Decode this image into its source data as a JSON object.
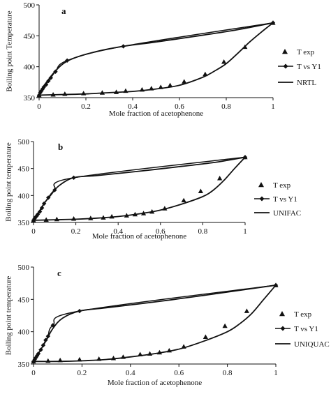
{
  "chart_data": [
    {
      "type": "line",
      "panel_label": "a",
      "xlabel": "Mole fraction of acetophenone",
      "ylabel": "Boiling  point Temperature",
      "xlim": [
        0,
        1
      ],
      "ylim": [
        350,
        500
      ],
      "xticks": [
        "0",
        "0.2",
        "0.4",
        "0.6",
        "0.8",
        "1"
      ],
      "yticks": [
        "350",
        "400",
        "450",
        "500"
      ],
      "legend": [
        "T exp",
        "T vs Y1",
        "NRTL"
      ],
      "legend_position": "right",
      "series": [
        {
          "name": "T exp",
          "marker": "triangle",
          "x": [
            0.0,
            0.06,
            0.11,
            0.19,
            0.27,
            0.33,
            0.37,
            0.44,
            0.48,
            0.52,
            0.56,
            0.62,
            0.71,
            0.79,
            0.88,
            1.0
          ],
          "y": [
            354,
            355,
            356,
            357,
            358,
            359,
            361,
            363,
            365,
            367,
            370,
            376,
            388,
            408,
            432,
            471
          ]
        },
        {
          "name": "T vs Y1",
          "marker": "diamond",
          "x": [
            0.0,
            0.005,
            0.01,
            0.015,
            0.02,
            0.03,
            0.04,
            0.05,
            0.07,
            0.12,
            0.36,
            1.0
          ],
          "y": [
            354,
            358,
            361,
            364,
            367,
            371,
            377,
            382,
            392,
            410,
            433,
            471
          ]
        },
        {
          "name": "NRTL",
          "marker": "none",
          "x": [
            0.0,
            0.1,
            0.2,
            0.3,
            0.4,
            0.5,
            0.6,
            0.7,
            0.75,
            0.8,
            0.85,
            0.9,
            0.95,
            1.0
          ],
          "y": [
            354,
            355,
            356,
            358,
            360,
            364,
            370,
            383,
            393,
            405,
            422,
            440,
            456,
            471
          ]
        },
        {
          "name": "NRTL",
          "marker": "none",
          "x": [
            0.0,
            0.01,
            0.02,
            0.04,
            0.06,
            0.1,
            0.15,
            0.25,
            0.36,
            0.5,
            0.7,
            0.85,
            1.0
          ],
          "y": [
            354,
            362,
            369,
            379,
            389,
            404,
            414,
            425,
            433,
            440,
            451,
            460,
            471
          ]
        }
      ]
    },
    {
      "type": "line",
      "panel_label": "b",
      "xlabel": "Mole fraction of  acetophenone",
      "ylabel": "Boiling point temperature",
      "xlim": [
        0,
        1
      ],
      "ylim": [
        350,
        500
      ],
      "xticks": [
        "0",
        "0.2",
        "0.4",
        "0.6",
        "0.8",
        "1"
      ],
      "yticks": [
        "350",
        "400",
        "450",
        "500"
      ],
      "legend": [
        "T exp",
        "T vs Y1",
        "UNIFAC"
      ],
      "legend_position": "right",
      "series": [
        {
          "name": "T exp",
          "marker": "triangle",
          "x": [
            0.0,
            0.06,
            0.11,
            0.19,
            0.27,
            0.33,
            0.37,
            0.44,
            0.48,
            0.52,
            0.56,
            0.62,
            0.71,
            0.79,
            0.88,
            1.0
          ],
          "y": [
            354,
            355,
            356,
            357,
            358,
            359,
            361,
            363,
            365,
            367,
            370,
            376,
            391,
            408,
            432,
            471
          ]
        },
        {
          "name": "T vs Y1",
          "marker": "diamond",
          "x": [
            0.0,
            0.005,
            0.01,
            0.015,
            0.02,
            0.03,
            0.04,
            0.05,
            0.07,
            0.1,
            0.19,
            1.0
          ],
          "y": [
            354,
            357,
            360,
            362,
            365,
            370,
            377,
            385,
            396,
            410,
            433,
            471
          ]
        },
        {
          "name": "UNIFAC",
          "marker": "none",
          "x": [
            0.0,
            0.1,
            0.2,
            0.3,
            0.4,
            0.5,
            0.6,
            0.7,
            0.8,
            0.85,
            0.9,
            0.95,
            1.0
          ],
          "y": [
            354,
            355,
            356,
            358,
            361,
            366,
            373,
            384,
            398,
            410,
            428,
            450,
            471
          ]
        },
        {
          "name": "UNIFAC",
          "marker": "none",
          "x": [
            0.0,
            0.02,
            0.05,
            0.08,
            0.12,
            0.19,
            0.3,
            0.5,
            0.7,
            0.85,
            1.0
          ],
          "y": [
            354,
            366,
            385,
            400,
            418,
            433,
            437,
            445,
            454,
            461,
            471
          ]
        }
      ]
    },
    {
      "type": "line",
      "panel_label": "c",
      "xlabel": "Mole fraction of acetophenone",
      "ylabel": "Boiling point temperature",
      "xlim": [
        0,
        1
      ],
      "ylim": [
        350,
        500
      ],
      "xticks": [
        "0",
        "0.2",
        "0.4",
        "0.6",
        "0.8",
        "1"
      ],
      "yticks": [
        "350",
        "400",
        "450",
        "500"
      ],
      "legend": [
        "T exp",
        "T vs Y1",
        "UNIQUAC"
      ],
      "legend_position": "right",
      "series": [
        {
          "name": "T exp",
          "marker": "triangle",
          "x": [
            0.0,
            0.06,
            0.11,
            0.19,
            0.27,
            0.33,
            0.37,
            0.44,
            0.48,
            0.52,
            0.56,
            0.62,
            0.71,
            0.79,
            0.88,
            1.0
          ],
          "y": [
            354,
            355,
            356,
            357,
            358,
            359,
            361,
            365,
            366,
            368,
            371,
            377,
            392,
            409,
            432,
            472
          ]
        },
        {
          "name": "T vs Y1",
          "marker": "diamond",
          "x": [
            0.0,
            0.005,
            0.01,
            0.015,
            0.02,
            0.03,
            0.04,
            0.05,
            0.06,
            0.08,
            0.19,
            1.0
          ],
          "y": [
            354,
            357,
            360,
            363,
            366,
            372,
            379,
            387,
            393,
            410,
            432,
            472
          ]
        },
        {
          "name": "UNIQUAC",
          "marker": "none",
          "x": [
            0.0,
            0.1,
            0.2,
            0.3,
            0.4,
            0.5,
            0.6,
            0.7,
            0.8,
            0.85,
            0.9,
            0.95,
            1.0
          ],
          "y": [
            354,
            354,
            355,
            357,
            361,
            366,
            373,
            385,
            400,
            412,
            428,
            450,
            472
          ]
        },
        {
          "name": "UNIQUAC",
          "marker": "none",
          "x": [
            0.0,
            0.02,
            0.05,
            0.08,
            0.12,
            0.19,
            0.3,
            0.5,
            0.7,
            0.85,
            1.0
          ],
          "y": [
            354,
            366,
            385,
            405,
            421,
            432,
            437,
            446,
            456,
            464,
            472
          ]
        }
      ]
    }
  ]
}
